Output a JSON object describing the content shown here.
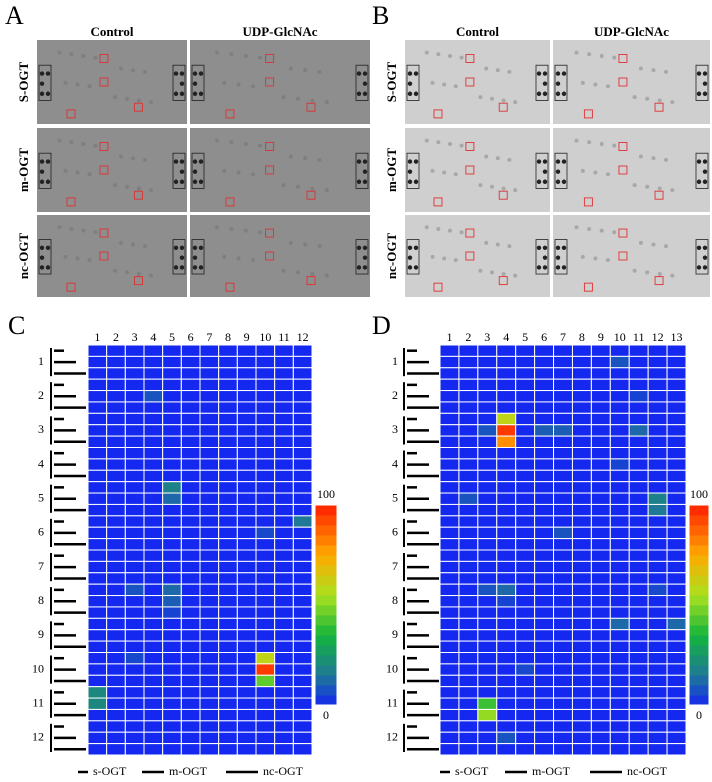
{
  "panel_labels": [
    "A",
    "B",
    "C",
    "D"
  ],
  "blots": [
    {
      "columns": [
        "Control",
        "UDP-GlcNAc"
      ],
      "rows": [
        "S-OGT",
        "m-OGT",
        "nc-OGT"
      ]
    },
    {
      "columns": [
        "Control",
        "UDP-GlcNAc"
      ],
      "rows": [
        "S-OGT",
        "m-OGT",
        "nc-OGT"
      ]
    }
  ],
  "chart_data": [
    {
      "type": "heatmap",
      "categories": [
        "1",
        "2",
        "3",
        "4",
        "5",
        "6",
        "7",
        "8",
        "9",
        "10",
        "11",
        "12"
      ],
      "row_groups": [
        "1",
        "2",
        "3",
        "4",
        "5",
        "6",
        "7",
        "8",
        "9",
        "10",
        "11",
        "12"
      ],
      "legend": [
        "s-OGT",
        "m-OGT",
        "nc-OGT"
      ],
      "zlim": [
        0,
        100
      ],
      "zticks": [
        0,
        100
      ],
      "values": [
        [
          0,
          0,
          0,
          0,
          0,
          0,
          0,
          0,
          0,
          0,
          0,
          0
        ],
        [
          0,
          0,
          0,
          0,
          0,
          0,
          0,
          0,
          0,
          0,
          0,
          0
        ],
        [
          0,
          0,
          0,
          0,
          0,
          0,
          0,
          0,
          0,
          0,
          0,
          0
        ],
        [
          0,
          0,
          0,
          0,
          0,
          0,
          0,
          0,
          0,
          0,
          0,
          0
        ],
        [
          0,
          0,
          0,
          8,
          0,
          0,
          0,
          0,
          0,
          0,
          0,
          0
        ],
        [
          0,
          0,
          0,
          0,
          0,
          0,
          0,
          0,
          0,
          0,
          0,
          0
        ],
        [
          0,
          0,
          0,
          0,
          0,
          0,
          0,
          0,
          0,
          0,
          0,
          0
        ],
        [
          0,
          0,
          0,
          0,
          0,
          0,
          0,
          0,
          0,
          0,
          0,
          0
        ],
        [
          0,
          0,
          0,
          0,
          0,
          0,
          0,
          0,
          0,
          0,
          0,
          0
        ],
        [
          0,
          0,
          0,
          0,
          0,
          0,
          0,
          0,
          0,
          0,
          0,
          0
        ],
        [
          0,
          0,
          0,
          0,
          0,
          0,
          0,
          0,
          0,
          0,
          0,
          0
        ],
        [
          0,
          0,
          0,
          0,
          0,
          0,
          0,
          0,
          0,
          0,
          0,
          0
        ],
        [
          0,
          0,
          0,
          0,
          18,
          0,
          0,
          0,
          0,
          0,
          0,
          0
        ],
        [
          0,
          0,
          0,
          0,
          12,
          0,
          0,
          0,
          0,
          0,
          0,
          0
        ],
        [
          0,
          0,
          0,
          0,
          0,
          0,
          0,
          0,
          0,
          0,
          0,
          0
        ],
        [
          0,
          0,
          0,
          0,
          0,
          0,
          0,
          0,
          0,
          0,
          0,
          15
        ],
        [
          0,
          0,
          0,
          0,
          0,
          0,
          0,
          0,
          0,
          6,
          0,
          0
        ],
        [
          0,
          0,
          0,
          0,
          0,
          0,
          0,
          0,
          0,
          0,
          0,
          0
        ],
        [
          0,
          0,
          0,
          0,
          0,
          0,
          0,
          0,
          0,
          0,
          0,
          0
        ],
        [
          0,
          0,
          0,
          0,
          0,
          0,
          0,
          0,
          0,
          0,
          0,
          0
        ],
        [
          0,
          0,
          0,
          0,
          0,
          0,
          0,
          0,
          0,
          0,
          0,
          0
        ],
        [
          0,
          0,
          8,
          0,
          12,
          0,
          0,
          0,
          0,
          0,
          0,
          0
        ],
        [
          0,
          0,
          0,
          0,
          10,
          0,
          0,
          0,
          0,
          0,
          0,
          0
        ],
        [
          0,
          0,
          0,
          0,
          5,
          0,
          0,
          0,
          0,
          0,
          0,
          0
        ],
        [
          0,
          0,
          0,
          0,
          0,
          0,
          0,
          0,
          0,
          0,
          0,
          0
        ],
        [
          0,
          0,
          0,
          0,
          0,
          0,
          0,
          0,
          0,
          0,
          0,
          0
        ],
        [
          0,
          0,
          0,
          0,
          0,
          0,
          0,
          0,
          0,
          0,
          0,
          0
        ],
        [
          0,
          0,
          6,
          0,
          0,
          0,
          0,
          0,
          0,
          60,
          0,
          0
        ],
        [
          0,
          0,
          0,
          0,
          0,
          0,
          0,
          0,
          0,
          95,
          0,
          0
        ],
        [
          0,
          0,
          0,
          0,
          0,
          0,
          0,
          0,
          0,
          45,
          0,
          0
        ],
        [
          20,
          0,
          0,
          0,
          0,
          0,
          0,
          0,
          0,
          0,
          0,
          0
        ],
        [
          20,
          0,
          0,
          0,
          0,
          0,
          0,
          0,
          0,
          0,
          0,
          0
        ],
        [
          0,
          0,
          0,
          0,
          0,
          0,
          0,
          0,
          0,
          0,
          0,
          0
        ],
        [
          0,
          0,
          0,
          0,
          0,
          0,
          0,
          0,
          0,
          0,
          0,
          0
        ],
        [
          0,
          0,
          0,
          0,
          0,
          0,
          0,
          0,
          0,
          0,
          0,
          0
        ],
        [
          0,
          0,
          0,
          0,
          0,
          0,
          0,
          0,
          0,
          0,
          0,
          0
        ]
      ]
    },
    {
      "type": "heatmap",
      "categories": [
        "1",
        "2",
        "3",
        "4",
        "5",
        "6",
        "7",
        "8",
        "9",
        "10",
        "11",
        "12",
        "13"
      ],
      "row_groups": [
        "1",
        "2",
        "3",
        "4",
        "5",
        "6",
        "7",
        "8",
        "9",
        "10",
        "11",
        "12"
      ],
      "legend": [
        "s-OGT",
        "m-OGT",
        "nc-OGT"
      ],
      "zlim": [
        0,
        100
      ],
      "zticks": [
        0,
        100
      ],
      "values": [
        [
          0,
          0,
          0,
          0,
          0,
          0,
          0,
          0,
          0,
          0,
          0,
          0,
          0
        ],
        [
          0,
          0,
          0,
          0,
          0,
          0,
          0,
          0,
          0,
          8,
          0,
          0,
          0
        ],
        [
          0,
          0,
          0,
          0,
          0,
          0,
          0,
          0,
          0,
          0,
          0,
          0,
          0
        ],
        [
          0,
          0,
          0,
          0,
          0,
          0,
          0,
          0,
          0,
          0,
          0,
          0,
          0
        ],
        [
          0,
          0,
          0,
          0,
          0,
          0,
          0,
          0,
          0,
          0,
          5,
          0,
          0
        ],
        [
          0,
          0,
          0,
          0,
          0,
          0,
          0,
          0,
          0,
          0,
          0,
          0,
          0
        ],
        [
          0,
          0,
          0,
          60,
          0,
          0,
          0,
          0,
          0,
          0,
          0,
          0,
          0
        ],
        [
          0,
          0,
          8,
          95,
          0,
          10,
          10,
          0,
          0,
          0,
          12,
          0,
          0
        ],
        [
          0,
          0,
          0,
          80,
          0,
          0,
          0,
          0,
          0,
          0,
          0,
          0,
          0
        ],
        [
          0,
          0,
          0,
          0,
          0,
          0,
          0,
          0,
          0,
          0,
          0,
          0,
          0
        ],
        [
          0,
          0,
          0,
          0,
          0,
          0,
          0,
          0,
          0,
          5,
          0,
          0,
          0
        ],
        [
          0,
          0,
          0,
          0,
          0,
          0,
          0,
          0,
          0,
          0,
          0,
          0,
          0
        ],
        [
          0,
          0,
          0,
          0,
          0,
          0,
          0,
          0,
          0,
          0,
          0,
          0,
          0
        ],
        [
          0,
          8,
          0,
          0,
          0,
          0,
          0,
          0,
          0,
          0,
          0,
          18,
          0
        ],
        [
          0,
          0,
          0,
          0,
          0,
          0,
          0,
          0,
          0,
          0,
          0,
          15,
          0
        ],
        [
          0,
          0,
          0,
          0,
          0,
          0,
          0,
          0,
          0,
          0,
          0,
          0,
          0
        ],
        [
          0,
          0,
          0,
          0,
          0,
          0,
          8,
          0,
          0,
          0,
          0,
          0,
          0
        ],
        [
          0,
          0,
          0,
          0,
          0,
          0,
          0,
          0,
          0,
          0,
          0,
          0,
          0
        ],
        [
          0,
          0,
          0,
          0,
          0,
          0,
          0,
          0,
          0,
          0,
          0,
          0,
          0
        ],
        [
          0,
          0,
          0,
          0,
          0,
          0,
          0,
          0,
          0,
          0,
          0,
          0,
          0
        ],
        [
          0,
          0,
          0,
          0,
          0,
          0,
          0,
          0,
          0,
          0,
          0,
          0,
          0
        ],
        [
          0,
          0,
          8,
          12,
          0,
          0,
          0,
          0,
          0,
          0,
          0,
          6,
          0
        ],
        [
          0,
          0,
          0,
          5,
          0,
          0,
          0,
          0,
          0,
          0,
          0,
          0,
          0
        ],
        [
          0,
          0,
          0,
          0,
          0,
          0,
          0,
          0,
          0,
          0,
          0,
          0,
          0
        ],
        [
          0,
          0,
          0,
          0,
          0,
          0,
          0,
          0,
          0,
          12,
          0,
          0,
          12
        ],
        [
          0,
          0,
          0,
          0,
          0,
          0,
          0,
          0,
          0,
          0,
          0,
          0,
          0
        ],
        [
          0,
          0,
          0,
          0,
          0,
          0,
          0,
          0,
          0,
          0,
          0,
          0,
          0
        ],
        [
          0,
          0,
          0,
          0,
          0,
          0,
          0,
          0,
          0,
          0,
          0,
          0,
          0
        ],
        [
          0,
          0,
          0,
          0,
          6,
          0,
          0,
          0,
          0,
          0,
          0,
          0,
          0
        ],
        [
          0,
          0,
          0,
          0,
          0,
          0,
          0,
          0,
          0,
          0,
          0,
          0,
          0
        ],
        [
          0,
          0,
          0,
          0,
          0,
          0,
          0,
          0,
          0,
          0,
          0,
          0,
          0
        ],
        [
          0,
          0,
          40,
          0,
          0,
          0,
          0,
          0,
          0,
          0,
          0,
          0,
          0
        ],
        [
          0,
          0,
          52,
          0,
          0,
          0,
          0,
          0,
          0,
          0,
          0,
          0,
          0
        ],
        [
          0,
          0,
          0,
          0,
          0,
          0,
          0,
          0,
          0,
          0,
          0,
          0,
          0
        ],
        [
          0,
          0,
          0,
          8,
          0,
          0,
          0,
          0,
          0,
          0,
          0,
          0,
          0
        ],
        [
          0,
          0,
          0,
          0,
          0,
          0,
          0,
          0,
          0,
          0,
          0,
          0,
          0
        ]
      ]
    }
  ]
}
